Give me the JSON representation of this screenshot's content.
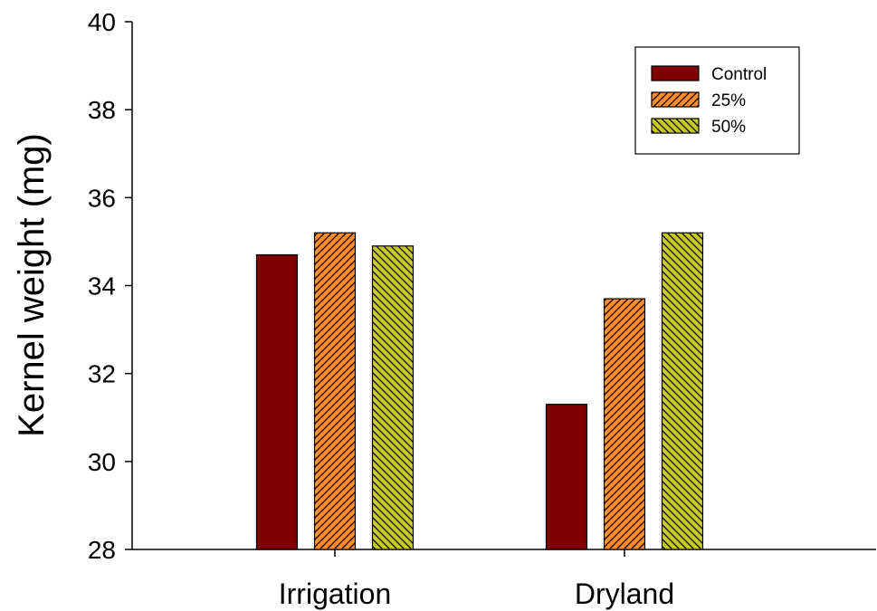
{
  "chart_data": {
    "type": "bar",
    "title": "",
    "xlabel": "",
    "ylabel": "Kernel weight (mg)",
    "ylim": [
      28,
      40
    ],
    "yticks": [
      28,
      30,
      32,
      34,
      36,
      38,
      40
    ],
    "categories": [
      "Irrigation",
      "Dryland"
    ],
    "series": [
      {
        "name": "Control",
        "values": [
          34.7,
          31.3
        ],
        "color": "#800000",
        "pattern": "solid"
      },
      {
        "name": "25%",
        "values": [
          35.2,
          33.7
        ],
        "color": "#ff8c2e",
        "pattern": "diagonal-forward"
      },
      {
        "name": "50%",
        "values": [
          34.9,
          35.2
        ],
        "color": "#c8c828",
        "pattern": "diagonal-back"
      }
    ],
    "grid": false,
    "legend": "top-right"
  }
}
